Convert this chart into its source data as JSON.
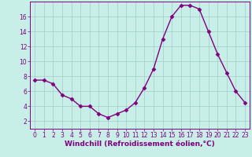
{
  "x_data": [
    0,
    1,
    2,
    3,
    4,
    5,
    6,
    7,
    8,
    9,
    10,
    11,
    12,
    13,
    14,
    15,
    16,
    17,
    18,
    19,
    20,
    21,
    22,
    23
  ],
  "y_data": [
    7.5,
    7.5,
    7.0,
    5.5,
    5.0,
    4.0,
    4.0,
    3.0,
    2.5,
    3.0,
    3.5,
    4.5,
    6.5,
    9.0,
    13.0,
    16.0,
    17.5,
    17.5,
    17.0,
    14.0,
    11.0,
    8.5,
    6.0,
    4.5
  ],
  "line_color": "#800080",
  "marker_color": "#800080",
  "bg_color": "#c8eee8",
  "grid_color": "#a0ccc8",
  "xlim": [
    -0.5,
    23.5
  ],
  "ylim": [
    1,
    18
  ],
  "yticks": [
    2,
    4,
    6,
    8,
    10,
    12,
    14,
    16
  ],
  "xticks": [
    0,
    1,
    2,
    3,
    4,
    5,
    6,
    7,
    8,
    9,
    10,
    11,
    12,
    13,
    14,
    15,
    16,
    17,
    18,
    19,
    20,
    21,
    22,
    23
  ],
  "marker": "D",
  "marker_size": 2.5,
  "line_width": 1.0,
  "xlabel": "Windchill (Refroidissement éolien,°C)",
  "xlabel_fontsize": 6.5,
  "tick_fontsize": 5.5,
  "tick_color": "#800080",
  "axis_color": "#800080",
  "label_color": "#800080"
}
